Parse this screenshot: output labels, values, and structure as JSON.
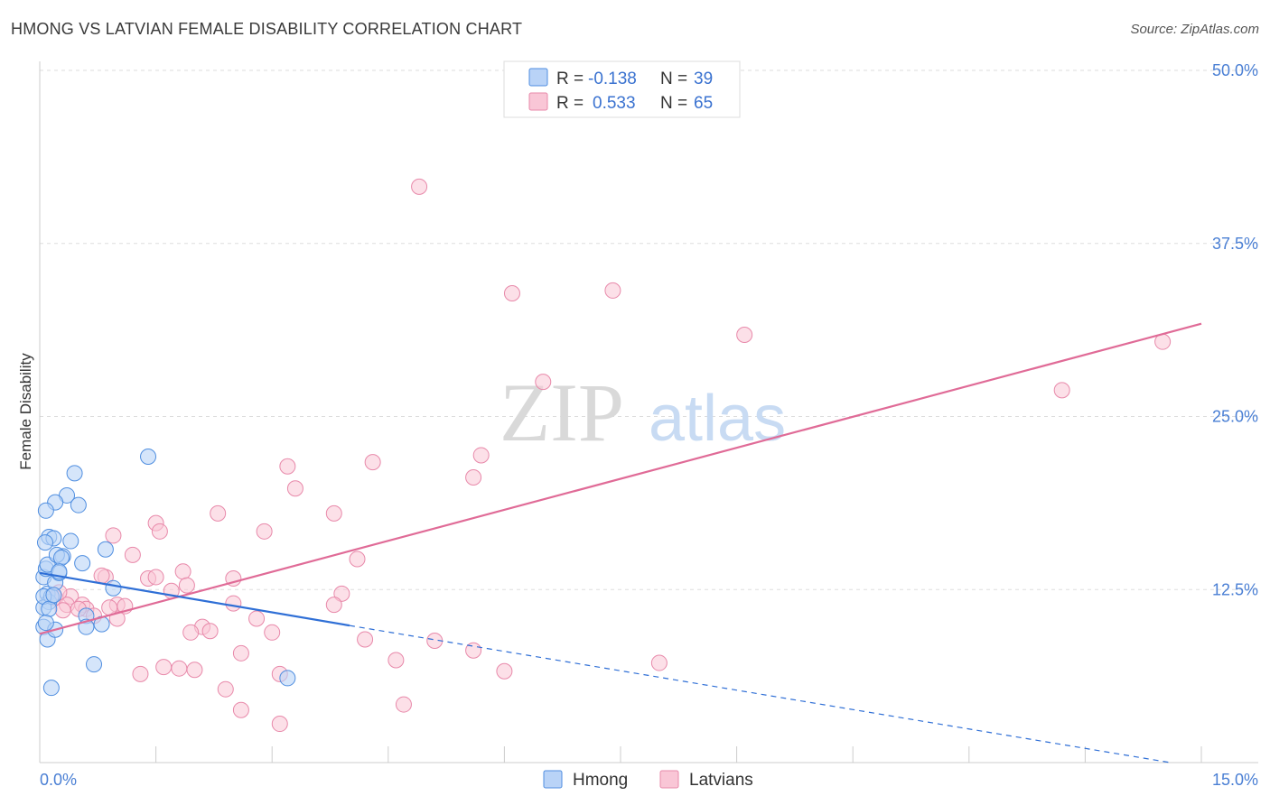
{
  "title": "HMONG VS LATVIAN FEMALE DISABILITY CORRELATION CHART",
  "source": "Source: ZipAtlas.com",
  "watermark": {
    "zip": "ZIP",
    "atlas": "atlas"
  },
  "colors": {
    "hmong_fill": "#b9d3f7",
    "hmong_stroke": "#4f8ee0",
    "hmong_line": "#2f6fd6",
    "latvian_fill": "#f9c6d6",
    "latvian_stroke": "#e889aa",
    "latvian_line": "#e06b97",
    "axis_text": "#4a7fd4",
    "grid": "#dddddd"
  },
  "legend": {
    "r_label": "R =",
    "n_label": "N =",
    "hmong": {
      "r": "-0.138",
      "n": "39"
    },
    "latvians": {
      "r": "0.533",
      "n": "65"
    }
  },
  "chart_data": {
    "type": "scatter",
    "title": "HMONG VS LATVIAN FEMALE DISABILITY CORRELATION CHART",
    "xlabel": "",
    "ylabel": "Female Disability",
    "xlim": [
      0,
      15
    ],
    "ylim": [
      0,
      50
    ],
    "x_tick_labels": [
      "0.0%",
      "15.0%"
    ],
    "y_ticks": [
      12.5,
      25.0,
      37.5,
      50.0
    ],
    "y_tick_labels": [
      "12.5%",
      "25.0%",
      "37.5%",
      "50.0%"
    ],
    "grid": true,
    "series": [
      {
        "name": "Hmong",
        "r": -0.138,
        "n": 39,
        "trend": {
          "x0": 0.0,
          "y0": 13.7,
          "x1": 4.0,
          "y1": 9.9,
          "dash_to_x": 14.6,
          "dash_to_y": 0.0
        },
        "points": [
          [
            0.05,
            13.4
          ],
          [
            0.08,
            14.0
          ],
          [
            0.1,
            12.2
          ],
          [
            0.12,
            11.6
          ],
          [
            0.05,
            11.2
          ],
          [
            0.15,
            12.0
          ],
          [
            0.2,
            13.0
          ],
          [
            0.1,
            14.3
          ],
          [
            0.25,
            13.7
          ],
          [
            0.3,
            14.9
          ],
          [
            0.35,
            19.3
          ],
          [
            0.2,
            18.8
          ],
          [
            0.4,
            16.0
          ],
          [
            0.45,
            20.9
          ],
          [
            0.5,
            18.6
          ],
          [
            0.12,
            16.3
          ],
          [
            0.18,
            16.2
          ],
          [
            0.07,
            15.9
          ],
          [
            0.08,
            18.2
          ],
          [
            0.22,
            15.0
          ],
          [
            0.28,
            14.8
          ],
          [
            0.55,
            14.4
          ],
          [
            0.6,
            10.6
          ],
          [
            0.7,
            7.1
          ],
          [
            0.8,
            10.0
          ],
          [
            0.85,
            15.4
          ],
          [
            0.95,
            12.6
          ],
          [
            1.4,
            22.1
          ],
          [
            0.05,
            9.8
          ],
          [
            0.1,
            8.9
          ],
          [
            0.15,
            5.4
          ],
          [
            0.2,
            9.6
          ],
          [
            0.6,
            9.8
          ],
          [
            3.2,
            6.1
          ],
          [
            0.05,
            12.0
          ],
          [
            0.12,
            11.1
          ],
          [
            0.18,
            12.1
          ],
          [
            0.25,
            13.8
          ],
          [
            0.08,
            10.1
          ]
        ]
      },
      {
        "name": "Latvians",
        "r": 0.533,
        "n": 65,
        "trend": {
          "x0": 0.0,
          "y0": 9.3,
          "x1": 15.0,
          "y1": 31.7
        },
        "points": [
          [
            4.9,
            41.6
          ],
          [
            6.1,
            33.9
          ],
          [
            7.4,
            34.1
          ],
          [
            9.1,
            30.9
          ],
          [
            14.5,
            30.4
          ],
          [
            13.2,
            26.9
          ],
          [
            6.5,
            27.5
          ],
          [
            5.7,
            22.2
          ],
          [
            5.6,
            20.6
          ],
          [
            4.3,
            21.7
          ],
          [
            3.2,
            21.4
          ],
          [
            3.3,
            19.8
          ],
          [
            3.8,
            18.0
          ],
          [
            2.3,
            18.0
          ],
          [
            1.5,
            17.3
          ],
          [
            1.55,
            16.7
          ],
          [
            2.9,
            16.7
          ],
          [
            0.95,
            16.4
          ],
          [
            1.2,
            15.0
          ],
          [
            4.1,
            14.7
          ],
          [
            1.85,
            13.8
          ],
          [
            2.5,
            13.3
          ],
          [
            1.4,
            13.3
          ],
          [
            1.5,
            13.4
          ],
          [
            0.85,
            13.4
          ],
          [
            0.8,
            13.5
          ],
          [
            1.9,
            12.8
          ],
          [
            1.7,
            12.4
          ],
          [
            3.9,
            12.2
          ],
          [
            0.4,
            12.0
          ],
          [
            0.2,
            11.9
          ],
          [
            2.5,
            11.5
          ],
          [
            3.8,
            11.4
          ],
          [
            1.0,
            11.4
          ],
          [
            1.1,
            11.3
          ],
          [
            0.35,
            11.4
          ],
          [
            0.55,
            11.4
          ],
          [
            0.6,
            11.1
          ],
          [
            0.3,
            11.0
          ],
          [
            0.7,
            10.6
          ],
          [
            1.0,
            10.4
          ],
          [
            2.8,
            10.4
          ],
          [
            2.1,
            9.8
          ],
          [
            2.2,
            9.5
          ],
          [
            1.95,
            9.4
          ],
          [
            3.0,
            9.4
          ],
          [
            4.2,
            8.9
          ],
          [
            5.1,
            8.8
          ],
          [
            5.6,
            8.1
          ],
          [
            2.6,
            7.9
          ],
          [
            4.6,
            7.4
          ],
          [
            8.0,
            7.2
          ],
          [
            1.6,
            6.9
          ],
          [
            1.8,
            6.8
          ],
          [
            2.0,
            6.7
          ],
          [
            1.3,
            6.4
          ],
          [
            3.1,
            6.4
          ],
          [
            6.0,
            6.6
          ],
          [
            2.4,
            5.3
          ],
          [
            4.7,
            4.2
          ],
          [
            2.6,
            3.8
          ],
          [
            3.1,
            2.8
          ],
          [
            0.5,
            11.1
          ],
          [
            0.25,
            12.3
          ],
          [
            0.9,
            11.2
          ]
        ]
      }
    ]
  },
  "bottom_legend": {
    "hmong": "Hmong",
    "latvians": "Latvians"
  }
}
